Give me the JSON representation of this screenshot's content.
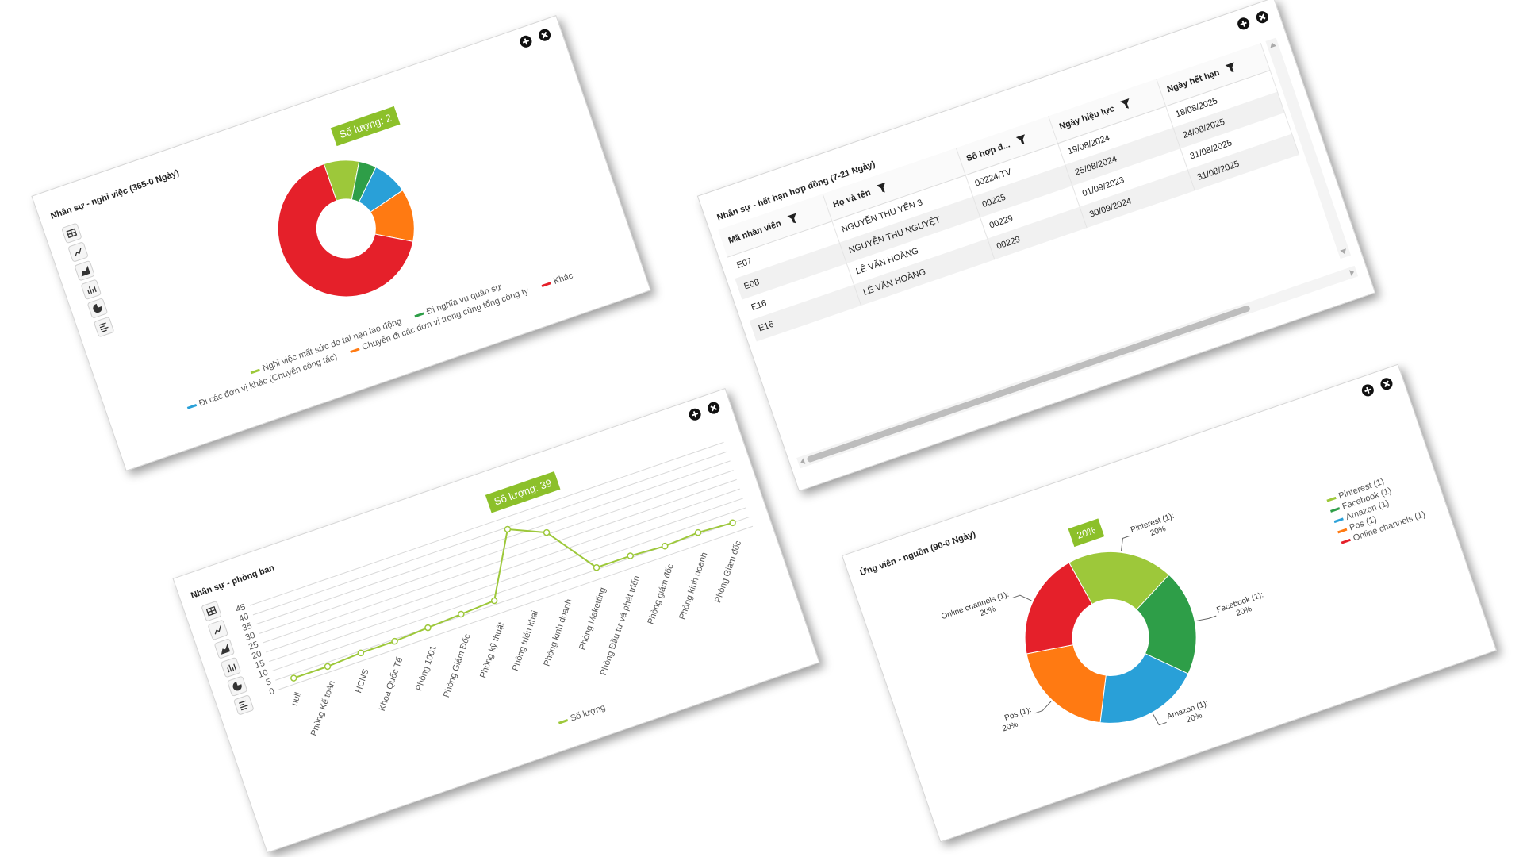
{
  "chart_data": [
    {
      "type": "pie",
      "title": "Nhân sự - nghỉ việc (365-0 Ngày)",
      "categories": [
        "Nghỉ việc mất sức do tai nạn lao động",
        "Đi nghĩa vụ quân sự",
        "Đi các đơn vị khác (Chuyển công tác)",
        "Chuyển đi các đơn vị trong cùng tổng công ty",
        "Khác"
      ],
      "values": [
        2,
        1,
        2,
        3,
        16
      ],
      "colors": [
        "#9dc83a",
        "#2e9e48",
        "#29a0d8",
        "#ff7a12",
        "#e5202a"
      ],
      "tooltip": "Số lượng: 2"
    },
    {
      "type": "line",
      "title": "Nhân sự - phòng ban",
      "categories": [
        "null",
        "Phòng Kế toán",
        "HCNS",
        "Khoa Quốc Tế",
        "Phòng 1001",
        "Phòng Giám Đốc",
        "Phòng kỹ thuật",
        "Phòng triển khai",
        "Phòng kinh doanh",
        "Phòng Maketting",
        "Phòng Đầu tư và phát triển",
        "Phòng giám đốc",
        "Phòng kinh doanh",
        "Phòng Giám đốc"
      ],
      "series": [
        {
          "name": "Số lượng",
          "color": "#9dc83a",
          "values": [
            3,
            3,
            4,
            4,
            5,
            6,
            7,
            39,
            31,
            6,
            6,
            5,
            6,
            5
          ]
        }
      ],
      "ylim": [
        0,
        45
      ],
      "yticks": [
        0,
        5,
        10,
        15,
        20,
        25,
        30,
        35,
        40,
        45
      ],
      "grid": true,
      "tooltip": "Số lượng: 39"
    },
    {
      "type": "pie",
      "title": "Ứng viên - nguồn (90-0 Ngày)",
      "categories": [
        "Pinterest (1)",
        "Facebook (1)",
        "Amazon (1)",
        "Pos (1)",
        "Online channels (1)"
      ],
      "data_labels": [
        "Pinterest (1):",
        "Facebook (1):",
        "Amazon (1):",
        "Pos (1):",
        "Online channels (1):"
      ],
      "values": [
        20,
        20,
        20,
        20,
        20
      ],
      "value_labels": [
        "20%",
        "20%",
        "20%",
        "20%",
        "20%"
      ],
      "colors": [
        "#9dc83a",
        "#2e9e48",
        "#29a0d8",
        "#ff7a12",
        "#e5202a"
      ],
      "tooltip": "20%"
    }
  ],
  "table_panel": {
    "title": "Nhân sự - hết hạn hợp đồng (7-21 Ngày)",
    "columns": [
      "Mã nhân viên",
      "Họ và tên",
      "Số hợp đ...",
      "Ngày hiệu lực",
      "Ngày hết hạn"
    ],
    "rows": [
      [
        "E07",
        "NGUYỄN THU YẾN 3",
        "00224/TV",
        "19/08/2024",
        "18/08/2025"
      ],
      [
        "E08",
        "NGUYỄN THU NGUYỆT",
        "00225",
        "25/08/2024",
        "24/08/2025"
      ],
      [
        "E16",
        "LÊ VĂN HOÀNG",
        "00229",
        "01/09/2023",
        "31/08/2025"
      ],
      [
        "E16",
        "LÊ VĂN HOÀNG",
        "00229",
        "30/09/2024",
        "31/08/2025"
      ]
    ]
  }
}
